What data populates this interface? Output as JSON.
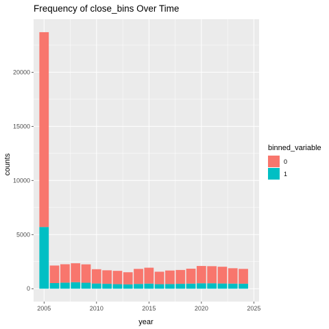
{
  "chart_data": {
    "type": "bar",
    "stacked": true,
    "title": "Frequency of close_bins Over Time",
    "xlabel": "year",
    "ylabel": "counts",
    "x": [
      2005,
      2006,
      2007,
      2008,
      2009,
      2010,
      2011,
      2012,
      2013,
      2014,
      2015,
      2016,
      2017,
      2018,
      2019,
      2020,
      2021,
      2022,
      2023,
      2024
    ],
    "series": [
      {
        "name": "1",
        "color": "#00BFC4",
        "values": [
          5700,
          520,
          560,
          600,
          550,
          480,
          450,
          420,
          400,
          440,
          470,
          420,
          430,
          450,
          470,
          500,
          500,
          480,
          470,
          460
        ]
      },
      {
        "name": "0",
        "color": "#F8766D",
        "values": [
          18000,
          1620,
          1700,
          1750,
          1700,
          1320,
          1250,
          1230,
          1120,
          1390,
          1470,
          1150,
          1250,
          1280,
          1380,
          1600,
          1580,
          1550,
          1420,
          1370
        ]
      }
    ],
    "xlim": [
      2004,
      2025.5
    ],
    "ylim": [
      -1190,
      24900
    ],
    "x_ticks": [
      {
        "value": 2005,
        "label": "2005"
      },
      {
        "value": 2010,
        "label": "2010"
      },
      {
        "value": 2015,
        "label": "2015"
      },
      {
        "value": 2020,
        "label": "2020"
      },
      {
        "value": 2025,
        "label": "2025"
      }
    ],
    "y_ticks": [
      {
        "value": 0,
        "label": "0"
      },
      {
        "value": 5000,
        "label": "5000"
      },
      {
        "value": 10000,
        "label": "10000"
      },
      {
        "value": 15000,
        "label": "15000"
      },
      {
        "value": 20000,
        "label": "20000"
      }
    ],
    "legend": {
      "title": "binned_variable",
      "position": "right",
      "items": [
        {
          "label": "0",
          "color": "#F8766D"
        },
        {
          "label": "1",
          "color": "#00BFC4"
        }
      ]
    },
    "grid": true,
    "panel_background": "#EBEBEB",
    "grid_color": "#FFFFFF"
  }
}
